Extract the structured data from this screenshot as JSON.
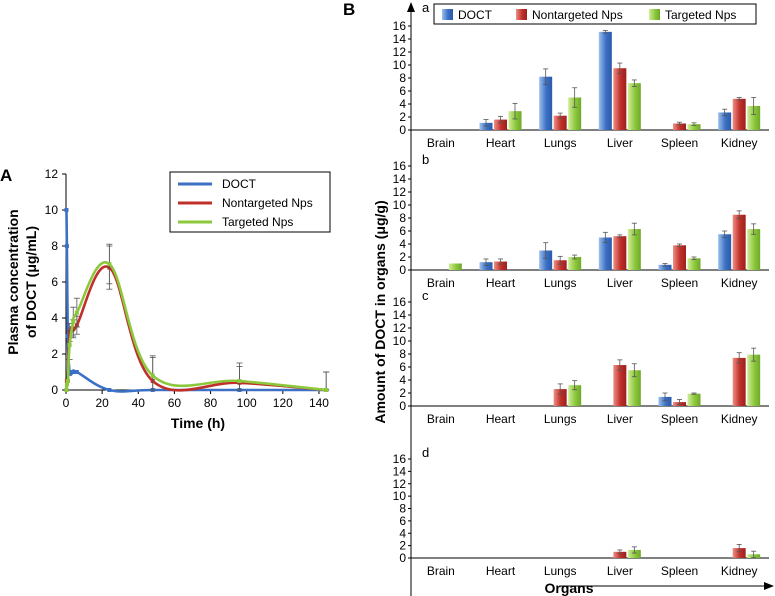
{
  "colors": {
    "doct": "#3b70c4",
    "doct_light": "#9cc0ee",
    "nontargeted": "#c0302a",
    "nontargeted_light": "#ee8f86",
    "targeted": "#8cc83c",
    "targeted_light": "#d3ec9c",
    "axis": "#000000",
    "error": "#555555"
  },
  "chart_data": [
    {
      "panel": "A",
      "type": "line",
      "xlabel": "Time (h)",
      "ylabel_line1": "Plasma concentration",
      "ylabel_line2": "of DOCT (μg/mL)",
      "xlim": [
        0,
        145
      ],
      "ylim": [
        0,
        12
      ],
      "xticks": [
        0,
        20,
        40,
        60,
        80,
        100,
        120,
        140
      ],
      "yticks": [
        0,
        2,
        4,
        6,
        8,
        10,
        12
      ],
      "series": [
        {
          "name": "DOCT",
          "key": "doct",
          "x": [
            0.25,
            0.5,
            1,
            2,
            4,
            6,
            24,
            48,
            96,
            144
          ],
          "y": [
            10,
            8,
            3,
            1,
            1,
            1,
            0,
            0,
            0,
            0
          ],
          "err": [
            0,
            0,
            0,
            0,
            0,
            0,
            0,
            0,
            0,
            0
          ]
        },
        {
          "name": "Nontargeted Nps",
          "key": "nontargeted",
          "x": [
            0.25,
            0.5,
            1,
            2,
            4,
            6,
            24,
            48,
            96,
            144
          ],
          "y": [
            0,
            0.5,
            0.5,
            3.2,
            3.4,
            3.6,
            6.8,
            0.5,
            0.4,
            0
          ],
          "err": [
            0,
            0,
            0,
            0.5,
            0.5,
            0.5,
            1.2,
            1.3,
            0.9,
            1.0
          ]
        },
        {
          "name": "Targeted Nps",
          "key": "targeted",
          "x": [
            0.25,
            0.5,
            1,
            2,
            4,
            6,
            24,
            48,
            96,
            144
          ],
          "y": [
            0,
            0.3,
            0.5,
            2.5,
            3.8,
            4.3,
            7.0,
            0.8,
            0.5,
            0
          ],
          "err": [
            0,
            0,
            0,
            0.8,
            0.8,
            0.8,
            1.1,
            1.1,
            1.0,
            1.0
          ]
        }
      ],
      "legend": [
        "DOCT",
        "Nontargeted Nps",
        "Targeted Nps"
      ],
      "legend_position": "top-right"
    },
    {
      "panel": "B",
      "type": "bar",
      "xlabel": "Organs",
      "ylabel": "Amount of DOCT in organs (μg/g)",
      "categories": [
        "Brain",
        "Heart",
        "Lungs",
        "Liver",
        "Spleen",
        "Kidney"
      ],
      "ylim": [
        0,
        16
      ],
      "yticks": [
        0,
        2,
        4,
        6,
        8,
        10,
        12,
        14,
        16
      ],
      "legend": [
        "DOCT",
        "Nontargeted Nps",
        "Targeted Nps"
      ],
      "legend_position": "top",
      "subplots": [
        {
          "label": "a",
          "series": [
            {
              "name": "DOCT",
              "values": [
                0,
                1.1,
                8.2,
                15.1,
                0,
                2.7
              ],
              "err": [
                0,
                0.5,
                1.2,
                0.2,
                0,
                0.5
              ]
            },
            {
              "name": "Nontargeted Nps",
              "values": [
                0,
                1.6,
                2.2,
                9.5,
                1.0,
                4.8
              ],
              "err": [
                0,
                0.5,
                0.4,
                0.8,
                0.2,
                0.2
              ]
            },
            {
              "name": "Targeted Nps",
              "values": [
                0,
                2.9,
                5.0,
                7.2,
                0.9,
                3.7
              ],
              "err": [
                0,
                1.2,
                1.5,
                0.5,
                0.2,
                1.3
              ]
            }
          ]
        },
        {
          "label": "b",
          "series": [
            {
              "name": "DOCT",
              "values": [
                0,
                1.2,
                3.0,
                5.0,
                0.8,
                5.5
              ],
              "err": [
                0,
                0.5,
                1.2,
                0.8,
                0.2,
                0.5
              ]
            },
            {
              "name": "Nontargeted Nps",
              "values": [
                0,
                1.3,
                1.5,
                5.2,
                3.8,
                8.5
              ],
              "err": [
                0,
                0.4,
                0.6,
                0.2,
                0.2,
                0.6
              ]
            },
            {
              "name": "Targeted Nps",
              "values": [
                1.0,
                0,
                2.0,
                6.3,
                1.8,
                6.3
              ],
              "err": [
                0,
                0,
                0.3,
                0.9,
                0.2,
                0.8
              ]
            }
          ]
        },
        {
          "label": "c",
          "series": [
            {
              "name": "DOCT",
              "values": [
                0,
                0,
                0,
                0,
                1.4,
                0
              ],
              "err": [
                0,
                0,
                0,
                0,
                0.6,
                0
              ]
            },
            {
              "name": "Nontargeted Nps",
              "values": [
                0,
                0,
                2.6,
                6.3,
                0.6,
                7.4
              ],
              "err": [
                0,
                0,
                0.8,
                0.8,
                0.4,
                0.8
              ]
            },
            {
              "name": "Targeted Nps",
              "values": [
                0,
                0,
                3.2,
                5.5,
                1.9,
                7.9
              ],
              "err": [
                0,
                0,
                0.7,
                1.0,
                0.1,
                1.0
              ]
            }
          ]
        },
        {
          "label": "d",
          "series": [
            {
              "name": "DOCT",
              "values": [
                0,
                0,
                0,
                0,
                0,
                0
              ],
              "err": [
                0,
                0,
                0,
                0,
                0,
                0
              ]
            },
            {
              "name": "Nontargeted Nps",
              "values": [
                0,
                0,
                0,
                1.0,
                0,
                1.6
              ],
              "err": [
                0,
                0,
                0,
                0.3,
                0,
                0.6
              ]
            },
            {
              "name": "Targeted Nps",
              "values": [
                0,
                0,
                0,
                1.3,
                0,
                0.6
              ],
              "err": [
                0,
                0,
                0,
                0.5,
                0,
                0.5
              ]
            }
          ]
        }
      ]
    }
  ]
}
